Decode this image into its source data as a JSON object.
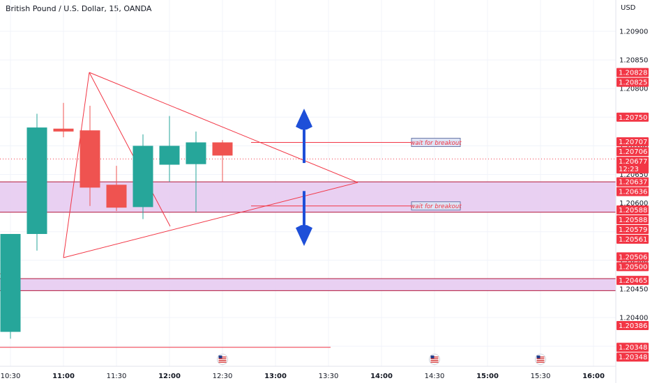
{
  "header": {
    "title": "British Pound / U.S. Dollar, 15, OANDA",
    "currency": "USD"
  },
  "chart_data": {
    "type": "candlestick",
    "symbol": "British Pound / U.S. Dollar",
    "interval": "15",
    "exchange": "OANDA",
    "ylim": [
      1.20315,
      1.2095
    ],
    "x_ticks": [
      "10:30",
      "11:00",
      "11:30",
      "12:00",
      "12:30",
      "13:00",
      "13:30",
      "14:00",
      "14:30",
      "15:00",
      "15:30",
      "16:00"
    ],
    "y_ticks": [
      "1.20900",
      "1.20850",
      "1.20800",
      "1.20750",
      "1.20700",
      "1.20650",
      "1.20600",
      "1.20550",
      "1.20500",
      "1.20450",
      "1.20400",
      "1.20350"
    ],
    "candles": [
      {
        "time": "10:15",
        "open": 1.20378,
        "high": 1.2039,
        "low": 1.2033,
        "close": 1.20335
      },
      {
        "time": "10:30",
        "open": 1.20375,
        "high": 1.20546,
        "low": 1.20363,
        "close": 1.20546
      },
      {
        "time": "10:45",
        "open": 1.20546,
        "high": 1.20756,
        "low": 1.20517,
        "close": 1.20732
      },
      {
        "time": "11:00",
        "open": 1.2073,
        "high": 1.20775,
        "low": 1.20715,
        "close": 1.20725
      },
      {
        "time": "11:15",
        "open": 1.20727,
        "high": 1.2077,
        "low": 1.20595,
        "close": 1.20627
      },
      {
        "time": "11:30",
        "open": 1.20632,
        "high": 1.20665,
        "low": 1.20586,
        "close": 1.20592
      },
      {
        "time": "11:45",
        "open": 1.20593,
        "high": 1.2072,
        "low": 1.20572,
        "close": 1.207
      },
      {
        "time": "12:00",
        "open": 1.20667,
        "high": 1.20752,
        "low": 1.20637,
        "close": 1.207
      },
      {
        "time": "12:15",
        "open": 1.20668,
        "high": 1.20725,
        "low": 1.20584,
        "close": 1.20706
      },
      {
        "time": "12:30",
        "open": 1.20706,
        "high": 1.2071,
        "low": 1.20637,
        "close": 1.20683
      }
    ],
    "bull_color": "#26a69a",
    "bear_color": "#ef5350",
    "zones": [
      {
        "top": 1.20637,
        "bottom": 1.20584,
        "color": "#e5c8f0"
      },
      {
        "top": 1.20468,
        "bottom": 1.20447,
        "color": "#e5c8f0"
      }
    ],
    "annotations": [
      {
        "text": "wait for breakout",
        "price": 1.20706
      },
      {
        "text": "wait for breakout",
        "price": 1.20595
      }
    ],
    "arrows": [
      {
        "direction": "up",
        "from": 1.2067,
        "to": 1.20765,
        "color": "#1e4fd8"
      },
      {
        "direction": "down",
        "from": 1.20621,
        "to": 1.20525,
        "color": "#1e4fd8"
      }
    ],
    "price_labels": [
      {
        "price": 1.20828,
        "text": "1.20828"
      },
      {
        "price": 1.20825,
        "text": "1.20825"
      },
      {
        "price": 1.2075,
        "text": "1.20750"
      },
      {
        "price": 1.20707,
        "text": "1.20707"
      },
      {
        "price": 1.20706,
        "text": "1.20706"
      },
      {
        "price": 1.20677,
        "text": "1.20677",
        "sub": "12:23"
      },
      {
        "price": 1.20637,
        "text": "1.20637"
      },
      {
        "price": 1.20636,
        "text": "1.20636"
      },
      {
        "price": 1.20588,
        "text": "1.20588"
      },
      {
        "price": 1.20588,
        "text": "1.20588"
      },
      {
        "price": 1.20579,
        "text": "1.20579"
      },
      {
        "price": 1.20561,
        "text": "1.20561"
      },
      {
        "price": 1.20506,
        "text": "1.20506"
      },
      {
        "price": 1.205,
        "text": "1.20500"
      },
      {
        "price": 1.20465,
        "text": "1.20465"
      },
      {
        "price": 1.20386,
        "text": "1.20386"
      },
      {
        "price": 1.20348,
        "text": "1.20348"
      },
      {
        "price": 1.20348,
        "text": "1.20348"
      }
    ],
    "current_price": 1.20677,
    "label_color": "#f23645",
    "events": [
      "12:30",
      "14:30",
      "15:30"
    ]
  }
}
